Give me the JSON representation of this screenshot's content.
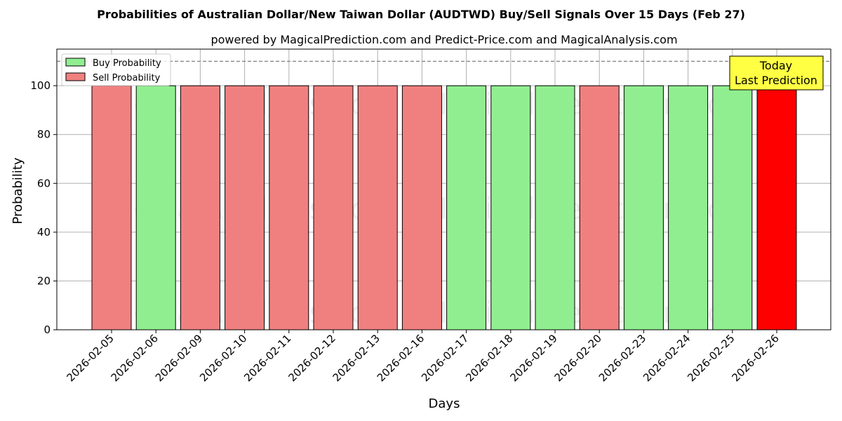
{
  "chart_data": {
    "type": "bar",
    "title": "Probabilities of Australian Dollar/New Taiwan Dollar (AUDTWD) Buy/Sell Signals Over 15 Days (Feb 27)",
    "subtitle": "powered by MagicalPrediction.com and Predict-Price.com and MagicalAnalysis.com",
    "xlabel": "Days",
    "ylabel": "Probability",
    "ylim": [
      0,
      115
    ],
    "yticks": [
      0,
      20,
      40,
      60,
      80,
      100
    ],
    "grid": true,
    "legend_position": "top-left",
    "reference_line": 110,
    "categories": [
      "2026-02-05",
      "2026-02-06",
      "2026-02-09",
      "2026-02-10",
      "2026-02-11",
      "2026-02-12",
      "2026-02-13",
      "2026-02-16",
      "2026-02-17",
      "2026-02-18",
      "2026-02-19",
      "2026-02-20",
      "2026-02-23",
      "2026-02-24",
      "2026-02-25",
      "2026-02-26"
    ],
    "values": [
      100,
      100,
      100,
      100,
      100,
      100,
      100,
      100,
      100,
      100,
      100,
      100,
      100,
      100,
      100,
      100
    ],
    "signals": [
      "sell",
      "buy",
      "sell",
      "sell",
      "sell",
      "sell",
      "sell",
      "sell",
      "buy",
      "buy",
      "buy",
      "sell",
      "buy",
      "buy",
      "buy",
      "last"
    ],
    "series": [
      {
        "name": "Buy Probability",
        "color": "#90ee90"
      },
      {
        "name": "Sell Probability",
        "color": "#f08080"
      }
    ],
    "last_color": "#ff0000",
    "annotation": {
      "line1": "Today",
      "line2": "Last Prediction",
      "color": "#ffff44"
    },
    "watermark": [
      "MagicalAnalysis.com",
      "MagicalPrediction.com"
    ]
  }
}
